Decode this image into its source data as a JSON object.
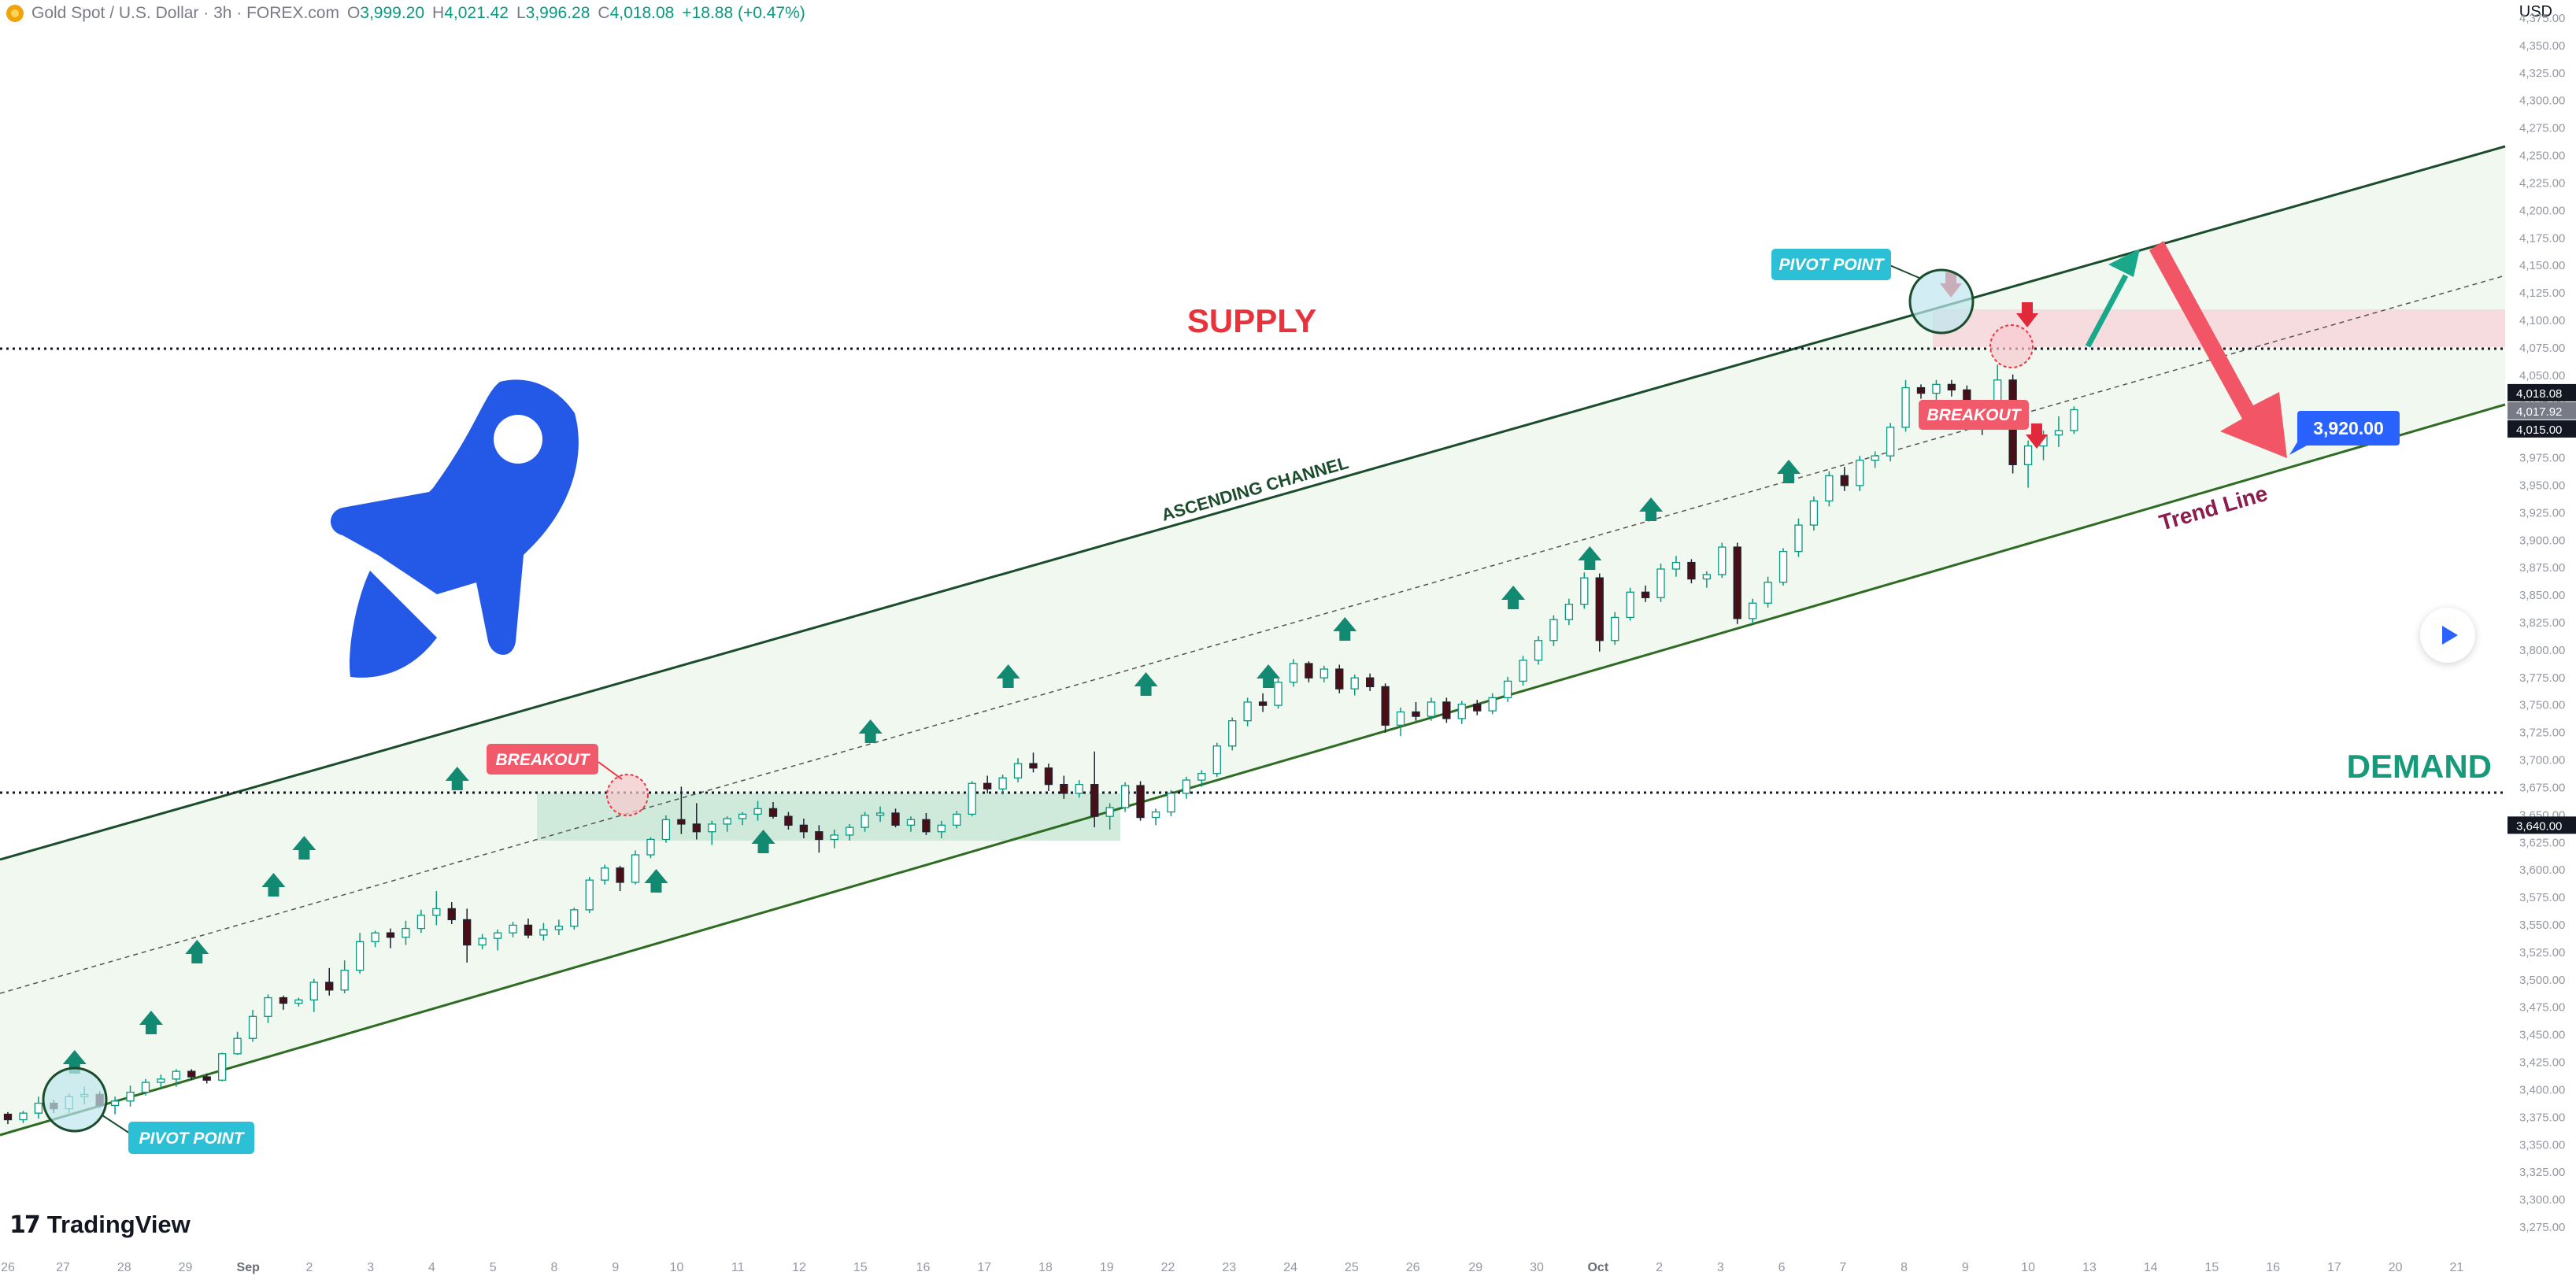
{
  "header": {
    "symbol": "Gold Spot / U.S. Dollar · 3h · FOREX.com",
    "o_label": "O",
    "o_value": "3,999.20",
    "h_label": "H",
    "h_value": "4,021.42",
    "l_label": "L",
    "l_value": "3,996.28",
    "c_label": "C",
    "c_value": "4,018.08",
    "change": "+18.88 (+0.47%)"
  },
  "currency": "USD",
  "brand": "TradingView",
  "colors": {
    "up": "#089981",
    "down": "#f23645",
    "channel": "#1b5e20",
    "supply": "#f23645",
    "demand": "#089981",
    "accent": "#2962ff"
  },
  "chart_data": {
    "type": "candlestick",
    "symbol": "XAUUSD",
    "timeframe": "3h",
    "y_axis": {
      "range": [
        3275,
        4375
      ],
      "ticks": [
        "4,375.00",
        "4,350.00",
        "4,325.00",
        "4,300.00",
        "4,275.00",
        "4,250.00",
        "4,225.00",
        "4,200.00",
        "4,175.00",
        "4,150.00",
        "4,125.00",
        "4,100.00",
        "4,075.00",
        "4,050.00",
        "4,025.00",
        "4,000.00",
        "3,975.00",
        "3,950.00",
        "3,925.00",
        "3,900.00",
        "3,875.00",
        "3,850.00",
        "3,825.00",
        "3,800.00",
        "3,775.00",
        "3,750.00",
        "3,725.00",
        "3,700.00",
        "3,675.00",
        "3,650.00",
        "3,625.00",
        "3,600.00",
        "3,575.00",
        "3,550.00",
        "3,525.00",
        "3,500.00",
        "3,475.00",
        "3,450.00",
        "3,425.00",
        "3,400.00",
        "3,375.00",
        "3,350.00",
        "3,325.00",
        "3,300.00",
        "3,275.00"
      ]
    },
    "x_axis": {
      "labels": [
        {
          "text": "26",
          "i": 0
        },
        {
          "text": "27",
          "i": 3.6
        },
        {
          "text": "28",
          "i": 7.6
        },
        {
          "text": "29",
          "i": 11.6
        },
        {
          "text": "Sep",
          "i": 15.7
        },
        {
          "text": "2",
          "i": 19.7
        },
        {
          "text": "3",
          "i": 23.7
        },
        {
          "text": "4",
          "i": 27.7
        },
        {
          "text": "5",
          "i": 31.7
        },
        {
          "text": "8",
          "i": 35.7
        },
        {
          "text": "9",
          "i": 39.7
        },
        {
          "text": "10",
          "i": 43.7
        },
        {
          "text": "11",
          "i": 47.7
        },
        {
          "text": "12",
          "i": 51.7
        },
        {
          "text": "15",
          "i": 55.7
        },
        {
          "text": "16",
          "i": 59.8
        },
        {
          "text": "17",
          "i": 63.8
        },
        {
          "text": "18",
          "i": 67.8
        },
        {
          "text": "19",
          "i": 71.8
        },
        {
          "text": "22",
          "i": 75.8
        },
        {
          "text": "23",
          "i": 79.8
        },
        {
          "text": "24",
          "i": 83.8
        },
        {
          "text": "25",
          "i": 87.8
        },
        {
          "text": "26",
          "i": 91.8
        },
        {
          "text": "29",
          "i": 95.9
        },
        {
          "text": "30",
          "i": 99.9
        },
        {
          "text": "Oct",
          "i": 103.9
        },
        {
          "text": "2",
          "i": 107.9
        },
        {
          "text": "3",
          "i": 111.9
        },
        {
          "text": "6",
          "i": 115.9
        },
        {
          "text": "7",
          "i": 119.9
        },
        {
          "text": "8",
          "i": 123.9
        },
        {
          "text": "9",
          "i": 127.9
        },
        {
          "text": "10",
          "i": 132.0
        },
        {
          "text": "13",
          "i": 136.0
        },
        {
          "text": "14",
          "i": 140.0
        },
        {
          "text": "15",
          "i": 144.0
        },
        {
          "text": "16",
          "i": 148.0
        },
        {
          "text": "17",
          "i": 152.0
        },
        {
          "text": "20",
          "i": 156.0
        },
        {
          "text": "21",
          "i": 160.0
        }
      ],
      "bold_labels": [
        "Sep",
        "Oct"
      ],
      "last_bar_index": 135
    },
    "candles": [
      [
        3377,
        3379,
        3368,
        3372
      ],
      [
        3372,
        3380,
        3369,
        3378
      ],
      [
        3378,
        3393,
        3373,
        3387
      ],
      [
        3387,
        3390,
        3378,
        3382
      ],
      [
        3382,
        3396,
        3378,
        3393
      ],
      [
        3393,
        3402,
        3386,
        3395
      ],
      [
        3395,
        3398,
        3383,
        3385
      ],
      [
        3385,
        3393,
        3377,
        3389
      ],
      [
        3389,
        3403,
        3384,
        3397
      ],
      [
        3397,
        3409,
        3394,
        3406
      ],
      [
        3406,
        3413,
        3401,
        3409
      ],
      [
        3409,
        3418,
        3402,
        3416
      ],
      [
        3416,
        3418,
        3408,
        3411
      ],
      [
        3411,
        3414,
        3405,
        3408
      ],
      [
        3408,
        3433,
        3407,
        3432
      ],
      [
        3432,
        3452,
        3431,
        3446
      ],
      [
        3446,
        3472,
        3443,
        3466
      ],
      [
        3466,
        3486,
        3460,
        3483
      ],
      [
        3483,
        3485,
        3472,
        3478
      ],
      [
        3478,
        3483,
        3475,
        3481
      ],
      [
        3481,
        3500,
        3470,
        3497
      ],
      [
        3497,
        3510,
        3485,
        3490
      ],
      [
        3490,
        3517,
        3487,
        3508
      ],
      [
        3508,
        3542,
        3505,
        3534
      ],
      [
        3534,
        3544,
        3529,
        3542
      ],
      [
        3542,
        3546,
        3528,
        3538
      ],
      [
        3538,
        3553,
        3531,
        3546
      ],
      [
        3546,
        3563,
        3542,
        3558
      ],
      [
        3558,
        3580,
        3549,
        3564
      ],
      [
        3564,
        3570,
        3550,
        3554
      ],
      [
        3554,
        3564,
        3515,
        3531
      ],
      [
        3531,
        3541,
        3527,
        3537
      ],
      [
        3537,
        3545,
        3526,
        3542
      ],
      [
        3542,
        3552,
        3538,
        3549
      ],
      [
        3549,
        3555,
        3537,
        3540
      ],
      [
        3540,
        3551,
        3535,
        3545
      ],
      [
        3545,
        3554,
        3540,
        3548
      ],
      [
        3548,
        3565,
        3545,
        3563
      ],
      [
        3563,
        3593,
        3560,
        3590
      ],
      [
        3590,
        3604,
        3586,
        3601
      ],
      [
        3601,
        3603,
        3580,
        3588
      ],
      [
        3588,
        3617,
        3586,
        3613
      ],
      [
        3613,
        3629,
        3610,
        3627
      ],
      [
        3627,
        3649,
        3624,
        3645
      ],
      [
        3645,
        3675,
        3632,
        3641
      ],
      [
        3641,
        3660,
        3627,
        3634
      ],
      [
        3634,
        3644,
        3622,
        3641
      ],
      [
        3641,
        3648,
        3634,
        3646
      ],
      [
        3646,
        3652,
        3640,
        3650
      ],
      [
        3650,
        3662,
        3644,
        3655
      ],
      [
        3655,
        3661,
        3646,
        3648
      ],
      [
        3648,
        3652,
        3636,
        3640
      ],
      [
        3640,
        3646,
        3628,
        3634
      ],
      [
        3634,
        3640,
        3615,
        3627
      ],
      [
        3627,
        3636,
        3619,
        3631
      ],
      [
        3631,
        3641,
        3626,
        3638
      ],
      [
        3638,
        3652,
        3634,
        3649
      ],
      [
        3649,
        3657,
        3643,
        3651
      ],
      [
        3651,
        3655,
        3638,
        3640
      ],
      [
        3640,
        3648,
        3634,
        3645
      ],
      [
        3645,
        3651,
        3631,
        3634
      ],
      [
        3634,
        3644,
        3628,
        3640
      ],
      [
        3640,
        3653,
        3637,
        3650
      ],
      [
        3650,
        3680,
        3648,
        3678
      ],
      [
        3678,
        3685,
        3669,
        3673
      ],
      [
        3673,
        3686,
        3668,
        3683
      ],
      [
        3683,
        3701,
        3679,
        3696
      ],
      [
        3696,
        3706,
        3688,
        3692
      ],
      [
        3692,
        3696,
        3671,
        3677
      ],
      [
        3677,
        3685,
        3664,
        3669
      ],
      [
        3669,
        3681,
        3665,
        3677
      ],
      [
        3677,
        3707,
        3638,
        3648
      ],
      [
        3648,
        3660,
        3636,
        3656
      ],
      [
        3656,
        3679,
        3652,
        3676
      ],
      [
        3676,
        3680,
        3644,
        3647
      ],
      [
        3647,
        3655,
        3640,
        3652
      ],
      [
        3652,
        3672,
        3648,
        3669
      ],
      [
        3669,
        3684,
        3664,
        3681
      ],
      [
        3681,
        3690,
        3675,
        3687
      ],
      [
        3687,
        3715,
        3684,
        3712
      ],
      [
        3712,
        3738,
        3708,
        3735
      ],
      [
        3735,
        3756,
        3730,
        3752
      ],
      [
        3752,
        3760,
        3743,
        3749
      ],
      [
        3749,
        3773,
        3746,
        3770
      ],
      [
        3770,
        3791,
        3766,
        3787
      ],
      [
        3787,
        3789,
        3770,
        3774
      ],
      [
        3774,
        3785,
        3770,
        3782
      ],
      [
        3782,
        3786,
        3760,
        3764
      ],
      [
        3764,
        3777,
        3758,
        3774
      ],
      [
        3774,
        3778,
        3762,
        3766
      ],
      [
        3766,
        3769,
        3724,
        3731
      ],
      [
        3731,
        3747,
        3721,
        3743
      ],
      [
        3743,
        3752,
        3735,
        3739
      ],
      [
        3739,
        3756,
        3735,
        3752
      ],
      [
        3752,
        3756,
        3733,
        3737
      ],
      [
        3737,
        3753,
        3732,
        3750
      ],
      [
        3750,
        3754,
        3740,
        3744
      ],
      [
        3744,
        3760,
        3741,
        3756
      ],
      [
        3756,
        3775,
        3752,
        3771
      ],
      [
        3771,
        3794,
        3767,
        3790
      ],
      [
        3790,
        3812,
        3786,
        3808
      ],
      [
        3808,
        3831,
        3803,
        3827
      ],
      [
        3827,
        3846,
        3822,
        3841
      ],
      [
        3841,
        3870,
        3837,
        3865
      ],
      [
        3865,
        3869,
        3798,
        3808
      ],
      [
        3808,
        3834,
        3804,
        3829
      ],
      [
        3829,
        3856,
        3826,
        3852
      ],
      [
        3852,
        3858,
        3843,
        3847
      ],
      [
        3847,
        3878,
        3843,
        3873
      ],
      [
        3873,
        3885,
        3866,
        3879
      ],
      [
        3879,
        3882,
        3860,
        3864
      ],
      [
        3864,
        3871,
        3856,
        3868
      ],
      [
        3868,
        3897,
        3865,
        3893
      ],
      [
        3893,
        3897,
        3823,
        3828
      ],
      [
        3828,
        3846,
        3823,
        3842
      ],
      [
        3842,
        3866,
        3838,
        3861
      ],
      [
        3861,
        3892,
        3858,
        3889
      ],
      [
        3889,
        3919,
        3884,
        3913
      ],
      [
        3913,
        3939,
        3908,
        3935
      ],
      [
        3935,
        3962,
        3930,
        3958
      ],
      [
        3958,
        3966,
        3944,
        3949
      ],
      [
        3949,
        3976,
        3944,
        3972
      ],
      [
        3972,
        3980,
        3965,
        3976
      ],
      [
        3976,
        4006,
        3971,
        4002
      ],
      [
        4002,
        4045,
        3998,
        4038
      ],
      [
        4038,
        4041,
        4028,
        4033
      ],
      [
        4033,
        4045,
        4027,
        4041
      ],
      [
        4041,
        4045,
        4030,
        4036
      ],
      [
        4036,
        4040,
        4000,
        4006
      ],
      [
        4006,
        4012,
        3995,
        4003
      ],
      [
        4003,
        4059,
        4000,
        4045
      ],
      [
        4045,
        4050,
        3960,
        3968
      ],
      [
        3968,
        3990,
        3947,
        3985
      ],
      [
        3985,
        3999,
        3972,
        3995
      ],
      [
        3995,
        4012,
        3984,
        3999
      ],
      [
        3999,
        4021,
        3996,
        4018
      ]
    ],
    "horizontal_levels": [
      {
        "price": 4018.08,
        "label": "4,018.08"
      },
      {
        "price": 4017.92,
        "label": "4,017.92"
      },
      {
        "price": 4015.0,
        "label": "4,015.00"
      },
      {
        "price": 3640.0,
        "label": "3,640.00"
      }
    ],
    "annotations": {
      "supply": "SUPPLY",
      "demand": "DEMAND",
      "ascending_channel": "ASCENDING CHANNEL",
      "trend_line": "Trend Line",
      "target": "3,920.00",
      "breakout_1": "BREAKOUT",
      "breakout_2": "BREAKOUT",
      "pivot_1": "PIVOT POINT",
      "pivot_2": "PIVOT POINT"
    }
  }
}
